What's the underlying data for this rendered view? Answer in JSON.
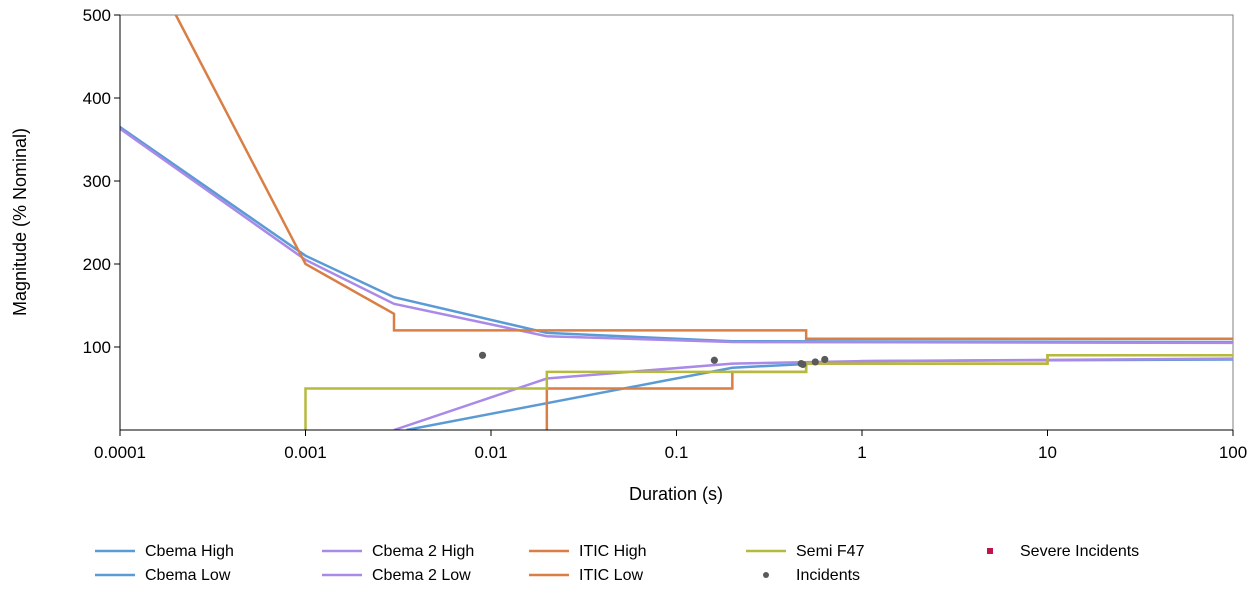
{
  "chart_data": {
    "type": "line",
    "title": "",
    "xlabel": "Duration (s)",
    "ylabel": "Magnitude (% Nominal)",
    "x_scale": "log",
    "xlim": [
      0.0001,
      100
    ],
    "ylim": [
      0,
      500
    ],
    "grid": false,
    "legend_position": "bottom",
    "x_ticks": [
      {
        "value": 0.0001,
        "label": "0.0001"
      },
      {
        "value": 0.001,
        "label": "0.001"
      },
      {
        "value": 0.01,
        "label": "0.01"
      },
      {
        "value": 0.1,
        "label": "0.1"
      },
      {
        "value": 1,
        "label": "1"
      },
      {
        "value": 10,
        "label": "10"
      },
      {
        "value": 100,
        "label": "100"
      }
    ],
    "y_ticks": [
      {
        "value": 100,
        "label": "100"
      },
      {
        "value": 200,
        "label": "200"
      },
      {
        "value": 300,
        "label": "300"
      },
      {
        "value": 400,
        "label": "400"
      },
      {
        "value": 500,
        "label": "500"
      }
    ],
    "series": [
      {
        "name": "Cbema High",
        "color": "#5b9bd5",
        "kind": "line",
        "points": [
          [
            0.0001,
            365
          ],
          [
            0.001,
            210
          ],
          [
            0.003,
            160
          ],
          [
            0.02,
            117
          ],
          [
            0.2,
            107
          ],
          [
            100,
            106
          ]
        ]
      },
      {
        "name": "Cbema Low",
        "color": "#5b9bd5",
        "kind": "line",
        "points": [
          [
            0.0035,
            0
          ],
          [
            0.2,
            75
          ],
          [
            1,
            83
          ],
          [
            100,
            85
          ]
        ]
      },
      {
        "name": "Cbema 2 High",
        "color": "#a98ae8",
        "kind": "line",
        "points": [
          [
            0.0001,
            363
          ],
          [
            0.001,
            205
          ],
          [
            0.003,
            152
          ],
          [
            0.02,
            113
          ],
          [
            0.2,
            106
          ],
          [
            100,
            105
          ]
        ]
      },
      {
        "name": "Cbema 2 Low",
        "color": "#a98ae8",
        "kind": "line",
        "points": [
          [
            0.003,
            0
          ],
          [
            0.02,
            62
          ],
          [
            0.2,
            80
          ],
          [
            1,
            83
          ],
          [
            100,
            86
          ]
        ]
      },
      {
        "name": "ITIC High",
        "color": "#d97f45",
        "kind": "line",
        "points": [
          [
            0.0002,
            500
          ],
          [
            0.001,
            200
          ],
          [
            0.003,
            140
          ],
          [
            0.003,
            120
          ],
          [
            0.5,
            120
          ],
          [
            0.5,
            110
          ],
          [
            100,
            110
          ]
        ]
      },
      {
        "name": "ITIC Low",
        "color": "#d97f45",
        "kind": "line",
        "points": [
          [
            0.02,
            0
          ],
          [
            0.02,
            50
          ],
          [
            0.2,
            50
          ],
          [
            0.2,
            70
          ],
          [
            0.5,
            70
          ],
          [
            0.5,
            80
          ],
          [
            10,
            80
          ],
          [
            10,
            90
          ],
          [
            100,
            90
          ]
        ]
      },
      {
        "name": "Semi F47",
        "color": "#b5ba3e",
        "kind": "line",
        "points": [
          [
            0.001,
            0
          ],
          [
            0.001,
            50
          ],
          [
            0.02,
            50
          ],
          [
            0.02,
            70
          ],
          [
            0.5,
            70
          ],
          [
            0.5,
            80
          ],
          [
            10,
            80
          ],
          [
            10,
            90
          ],
          [
            100,
            90
          ]
        ]
      },
      {
        "name": "Incidents",
        "color": "#5a5a5a",
        "kind": "scatter",
        "points": [
          [
            0.009,
            90
          ],
          [
            0.16,
            84
          ],
          [
            0.47,
            80
          ],
          [
            0.48,
            79
          ],
          [
            0.56,
            82
          ],
          [
            0.63,
            85
          ]
        ]
      },
      {
        "name": "Severe Incidents",
        "color": "#c0144b",
        "kind": "scatter",
        "points": []
      }
    ]
  }
}
